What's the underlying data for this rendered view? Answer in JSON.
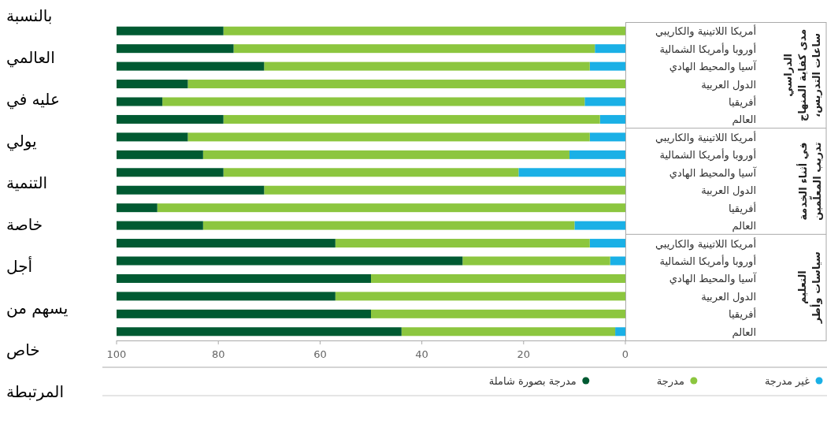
{
  "chart_data": [
    {
      "type": "bar",
      "orientation": "horizontal",
      "stacked": true,
      "categories": [
        "أمريكا اللاتينية والكاريبي",
        "أوروبا وأمريكا الشمالية",
        "آسيا والمحيط الهادي",
        "الدول العربية",
        "أفريقيا",
        "العالم",
        "أمريكا اللاتينية والكاريبي",
        "أوروبا وأمريكا الشمالية",
        "آسيا والمحيط الهادي",
        "الدول العربية",
        "أفريقيا",
        "العالم",
        "أمريكا اللاتينية والكاريبي",
        "أوروبا وأمريكا الشمالية",
        "آسيا والمحيط الهادي",
        "الدول العربية",
        "أفريقيا",
        "العالم"
      ],
      "xlim": [
        100,
        0
      ],
      "xticks": [
        100,
        80,
        60,
        40,
        20,
        0
      ],
      "legend": "bottom",
      "annotations": [
        "ساعات التدريس، مدى كفاية المنهاج الدراسي",
        "تدريب المعلّمين في أثناء الخدمة",
        "سياسات وأطر التعليم"
      ],
      "series": [
        {
          "name": "غير مدرجة",
          "color": "#1ab0e6",
          "values": [
            0,
            6,
            7,
            0,
            8,
            5,
            7,
            11,
            21,
            0,
            0,
            10,
            7,
            3,
            0,
            0,
            0,
            2
          ]
        },
        {
          "name": "مدرجة",
          "color": "#8cc63f",
          "values": [
            79,
            71,
            64,
            86,
            83,
            74,
            79,
            72,
            58,
            71,
            92,
            73,
            50,
            29,
            50,
            57,
            50,
            42
          ]
        },
        {
          "name": "مدرجة بصورة شاملة",
          "color": "#005a32",
          "values": [
            21,
            23,
            29,
            14,
            9,
            21,
            14,
            17,
            21,
            29,
            8,
            17,
            43,
            68,
            50,
            43,
            50,
            56
          ]
        }
      ]
    },
    {
      "type": "other",
      "annotations": [
        "بالنسبة",
        "العالمي",
        "عليه   في",
        "يولي",
        "التنمية",
        "خاصة",
        "أجل",
        "يسهم  من",
        "خاص",
        "المرتبطة"
      ]
    }
  ]
}
